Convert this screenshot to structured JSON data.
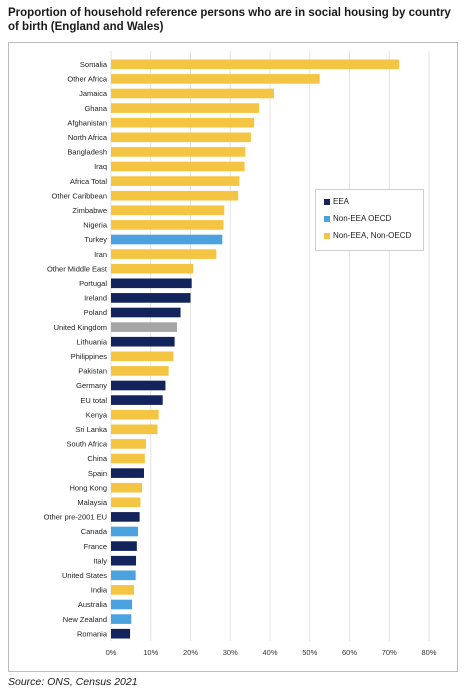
{
  "chart_data": {
    "type": "bar",
    "orientation": "horizontal",
    "title": "Proportion of household reference persons who are in social housing by country of birth (England and Wales)",
    "source": "Source: ONS, Census 2021",
    "xlim": [
      0,
      80
    ],
    "xticks": [
      0,
      10,
      20,
      30,
      40,
      50,
      60,
      70,
      80
    ],
    "tick_suffix": "%",
    "grid": "vertical",
    "legend_placement": "right",
    "groups": [
      {
        "key": "eea",
        "name": "EEA",
        "color": "#13235b"
      },
      {
        "key": "oecd",
        "name": "Non-EEA OECD",
        "color": "#4aa3df"
      },
      {
        "key": "other",
        "name": "Non-EEA, Non-OECD",
        "color": "#f4c542"
      }
    ],
    "uk_color": "#a6a6a6",
    "bars": [
      {
        "category": "Somalia",
        "value": 72.5,
        "group": "other"
      },
      {
        "category": "Other Africa",
        "value": 52.5,
        "group": "other"
      },
      {
        "category": "Jamaica",
        "value": 41,
        "group": "other"
      },
      {
        "category": "Ghana",
        "value": 37.3,
        "group": "other"
      },
      {
        "category": "Afghanistan",
        "value": 36,
        "group": "other"
      },
      {
        "category": "North Africa",
        "value": 35.2,
        "group": "other"
      },
      {
        "category": "Bangladesh",
        "value": 33.8,
        "group": "other"
      },
      {
        "category": "Iraq",
        "value": 33.6,
        "group": "other"
      },
      {
        "category": "Africa Total",
        "value": 32.3,
        "group": "other"
      },
      {
        "category": "Other Caribbean",
        "value": 32,
        "group": "other"
      },
      {
        "category": "Zimbabwe",
        "value": 28.5,
        "group": "other"
      },
      {
        "category": "Nigeria",
        "value": 28.3,
        "group": "other"
      },
      {
        "category": "Turkey",
        "value": 28,
        "group": "oecd"
      },
      {
        "category": "Iran",
        "value": 26.5,
        "group": "other"
      },
      {
        "category": "Other Middle East",
        "value": 20.7,
        "group": "other"
      },
      {
        "category": "Portugal",
        "value": 20.3,
        "group": "eea"
      },
      {
        "category": "Ireland",
        "value": 20,
        "group": "eea"
      },
      {
        "category": "Poland",
        "value": 17.5,
        "group": "eea"
      },
      {
        "category": "United Kingdom",
        "value": 16.6,
        "group": "uk"
      },
      {
        "category": "Lithuania",
        "value": 16,
        "group": "eea"
      },
      {
        "category": "Philippines",
        "value": 15.7,
        "group": "other"
      },
      {
        "category": "Pakistan",
        "value": 14.5,
        "group": "other"
      },
      {
        "category": "Germany",
        "value": 13.7,
        "group": "eea"
      },
      {
        "category": "EU total",
        "value": 13,
        "group": "eea"
      },
      {
        "category": "Kenya",
        "value": 12,
        "group": "other"
      },
      {
        "category": "Sri Lanka",
        "value": 11.7,
        "group": "other"
      },
      {
        "category": "South Africa",
        "value": 8.8,
        "group": "other"
      },
      {
        "category": "China",
        "value": 8.5,
        "group": "other"
      },
      {
        "category": "Spain",
        "value": 8.3,
        "group": "eea"
      },
      {
        "category": "Hong Kong",
        "value": 7.8,
        "group": "other"
      },
      {
        "category": "Malaysia",
        "value": 7.4,
        "group": "other"
      },
      {
        "category": "Other pre-2001 EU",
        "value": 7.2,
        "group": "eea"
      },
      {
        "category": "Canada",
        "value": 6.8,
        "group": "oecd"
      },
      {
        "category": "France",
        "value": 6.5,
        "group": "eea"
      },
      {
        "category": "Italy",
        "value": 6.3,
        "group": "eea"
      },
      {
        "category": "United States",
        "value": 6.2,
        "group": "oecd"
      },
      {
        "category": "India",
        "value": 5.8,
        "group": "other"
      },
      {
        "category": "Australia",
        "value": 5.3,
        "group": "oecd"
      },
      {
        "category": "New Zealand",
        "value": 5.1,
        "group": "oecd"
      },
      {
        "category": "Romania",
        "value": 4.8,
        "group": "eea"
      }
    ]
  }
}
